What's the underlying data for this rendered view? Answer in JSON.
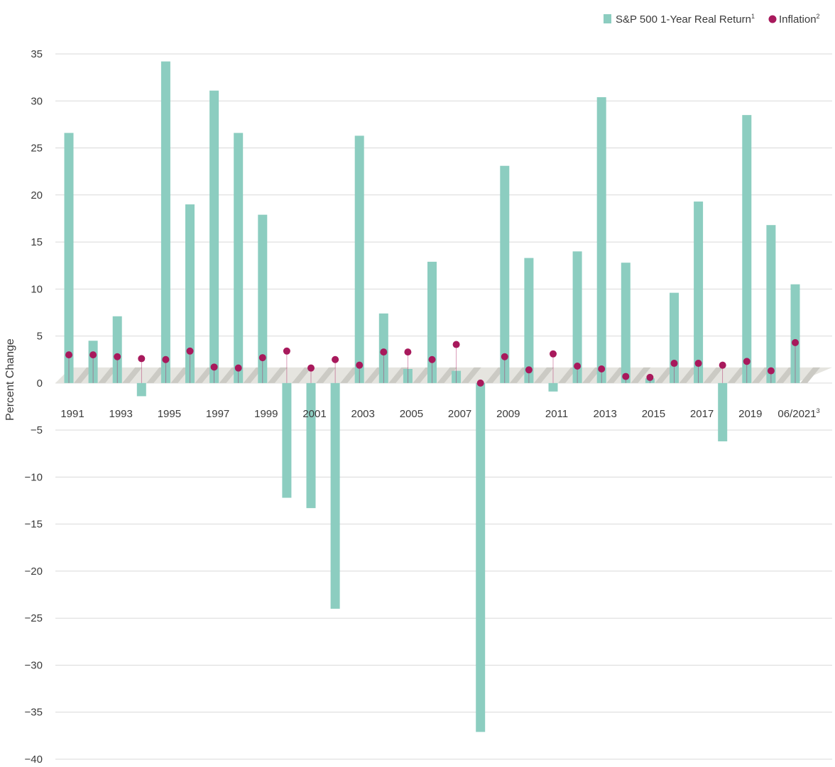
{
  "chart_data": {
    "type": "bar",
    "ylabel": "Percent Change",
    "ylim": [
      -40,
      35
    ],
    "yticks": [
      35,
      30,
      25,
      20,
      15,
      10,
      5,
      0,
      -5,
      -10,
      -15,
      -20,
      -25,
      -30,
      -35,
      -40
    ],
    "ytick_labels": [
      "35",
      "30",
      "25",
      "20",
      "15",
      "10",
      "5",
      "0",
      "−5",
      "−10",
      "−15",
      "−20",
      "−25",
      "−30",
      "−35",
      "−40"
    ],
    "grid": true,
    "legend_position": "top-right",
    "categories": [
      "1991",
      "1992",
      "1993",
      "1994",
      "1995",
      "1996",
      "1997",
      "1998",
      "1999",
      "2000",
      "2001",
      "2002",
      "2003",
      "2004",
      "2005",
      "2006",
      "2007",
      "2008",
      "2009",
      "2010",
      "2011",
      "2012",
      "2013",
      "2014",
      "2015",
      "2016",
      "2017",
      "2018",
      "2019",
      "2020",
      "06/2021"
    ],
    "x_tick_labels": [
      {
        "index": 0,
        "text": "1991"
      },
      {
        "index": 2,
        "text": "1993"
      },
      {
        "index": 4,
        "text": "1995"
      },
      {
        "index": 6,
        "text": "1997"
      },
      {
        "index": 8,
        "text": "1999"
      },
      {
        "index": 10,
        "text": "2001"
      },
      {
        "index": 12,
        "text": "2003"
      },
      {
        "index": 14,
        "text": "2005"
      },
      {
        "index": 16,
        "text": "2007"
      },
      {
        "index": 18,
        "text": "2009"
      },
      {
        "index": 20,
        "text": "2011"
      },
      {
        "index": 22,
        "text": "2013"
      },
      {
        "index": 24,
        "text": "2015"
      },
      {
        "index": 26,
        "text": "2017"
      },
      {
        "index": 28,
        "text": "2019"
      },
      {
        "index": 30,
        "text": "06/2021",
        "sup": "3"
      }
    ],
    "series": [
      {
        "name": "S&P 500 1-Year Real Return",
        "sup": "1",
        "kind": "bar",
        "color": "#8ccdc0",
        "values": [
          26.6,
          4.5,
          7.1,
          -1.4,
          34.2,
          19.0,
          31.1,
          26.6,
          17.9,
          -12.2,
          -13.3,
          -24.0,
          26.3,
          7.4,
          1.5,
          12.9,
          1.3,
          -37.1,
          23.1,
          13.3,
          -0.9,
          14.0,
          30.4,
          12.8,
          0.5,
          9.6,
          19.3,
          -6.2,
          28.5,
          16.8,
          10.5
        ]
      },
      {
        "name": "Inflation",
        "sup": "2",
        "kind": "dot",
        "color": "#a8195c",
        "values": [
          3.0,
          3.0,
          2.8,
          2.6,
          2.5,
          3.4,
          1.7,
          1.6,
          2.7,
          3.4,
          1.6,
          2.5,
          1.9,
          3.3,
          3.3,
          2.5,
          4.1,
          0.0,
          2.8,
          1.4,
          3.1,
          1.8,
          1.5,
          0.7,
          0.6,
          2.1,
          2.1,
          1.9,
          2.3,
          1.3,
          4.3
        ]
      }
    ]
  }
}
